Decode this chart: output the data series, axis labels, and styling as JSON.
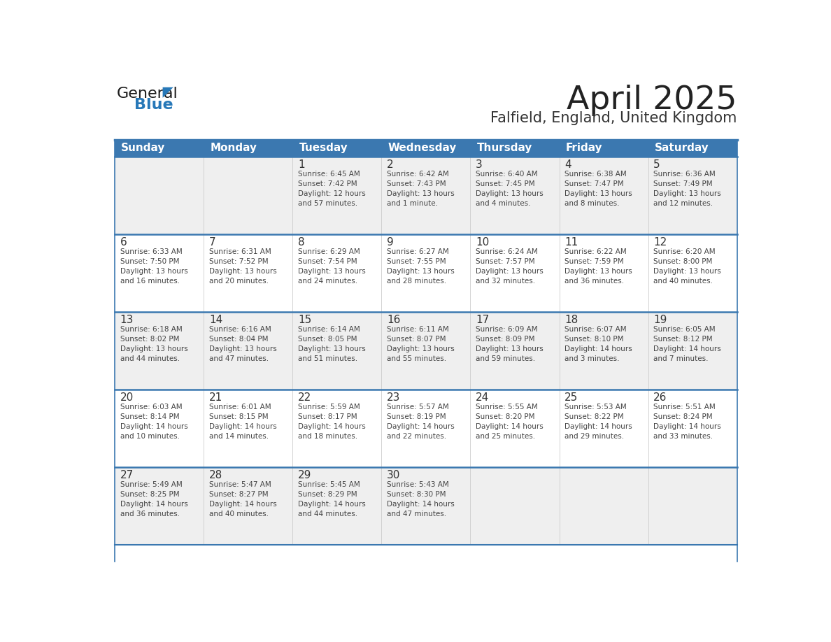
{
  "title": "April 2025",
  "subtitle": "Falfield, England, United Kingdom",
  "days_of_week": [
    "Sunday",
    "Monday",
    "Tuesday",
    "Wednesday",
    "Thursday",
    "Friday",
    "Saturday"
  ],
  "header_bg_color": "#3b78b0",
  "header_text_color": "#ffffff",
  "row_bg_light": "#efefef",
  "row_bg_white": "#ffffff",
  "cell_border_color": "#3b78b0",
  "row_separator_color": "#3b78b0",
  "title_color": "#222222",
  "subtitle_color": "#333333",
  "day_number_color": "#333333",
  "cell_text_color": "#444444",
  "logo_general_color": "#1a1a1a",
  "logo_blue_color": "#2778b8",
  "weeks": [
    [
      {
        "day": null,
        "text": ""
      },
      {
        "day": null,
        "text": ""
      },
      {
        "day": 1,
        "text": "Sunrise: 6:45 AM\nSunset: 7:42 PM\nDaylight: 12 hours\nand 57 minutes."
      },
      {
        "day": 2,
        "text": "Sunrise: 6:42 AM\nSunset: 7:43 PM\nDaylight: 13 hours\nand 1 minute."
      },
      {
        "day": 3,
        "text": "Sunrise: 6:40 AM\nSunset: 7:45 PM\nDaylight: 13 hours\nand 4 minutes."
      },
      {
        "day": 4,
        "text": "Sunrise: 6:38 AM\nSunset: 7:47 PM\nDaylight: 13 hours\nand 8 minutes."
      },
      {
        "day": 5,
        "text": "Sunrise: 6:36 AM\nSunset: 7:49 PM\nDaylight: 13 hours\nand 12 minutes."
      }
    ],
    [
      {
        "day": 6,
        "text": "Sunrise: 6:33 AM\nSunset: 7:50 PM\nDaylight: 13 hours\nand 16 minutes."
      },
      {
        "day": 7,
        "text": "Sunrise: 6:31 AM\nSunset: 7:52 PM\nDaylight: 13 hours\nand 20 minutes."
      },
      {
        "day": 8,
        "text": "Sunrise: 6:29 AM\nSunset: 7:54 PM\nDaylight: 13 hours\nand 24 minutes."
      },
      {
        "day": 9,
        "text": "Sunrise: 6:27 AM\nSunset: 7:55 PM\nDaylight: 13 hours\nand 28 minutes."
      },
      {
        "day": 10,
        "text": "Sunrise: 6:24 AM\nSunset: 7:57 PM\nDaylight: 13 hours\nand 32 minutes."
      },
      {
        "day": 11,
        "text": "Sunrise: 6:22 AM\nSunset: 7:59 PM\nDaylight: 13 hours\nand 36 minutes."
      },
      {
        "day": 12,
        "text": "Sunrise: 6:20 AM\nSunset: 8:00 PM\nDaylight: 13 hours\nand 40 minutes."
      }
    ],
    [
      {
        "day": 13,
        "text": "Sunrise: 6:18 AM\nSunset: 8:02 PM\nDaylight: 13 hours\nand 44 minutes."
      },
      {
        "day": 14,
        "text": "Sunrise: 6:16 AM\nSunset: 8:04 PM\nDaylight: 13 hours\nand 47 minutes."
      },
      {
        "day": 15,
        "text": "Sunrise: 6:14 AM\nSunset: 8:05 PM\nDaylight: 13 hours\nand 51 minutes."
      },
      {
        "day": 16,
        "text": "Sunrise: 6:11 AM\nSunset: 8:07 PM\nDaylight: 13 hours\nand 55 minutes."
      },
      {
        "day": 17,
        "text": "Sunrise: 6:09 AM\nSunset: 8:09 PM\nDaylight: 13 hours\nand 59 minutes."
      },
      {
        "day": 18,
        "text": "Sunrise: 6:07 AM\nSunset: 8:10 PM\nDaylight: 14 hours\nand 3 minutes."
      },
      {
        "day": 19,
        "text": "Sunrise: 6:05 AM\nSunset: 8:12 PM\nDaylight: 14 hours\nand 7 minutes."
      }
    ],
    [
      {
        "day": 20,
        "text": "Sunrise: 6:03 AM\nSunset: 8:14 PM\nDaylight: 14 hours\nand 10 minutes."
      },
      {
        "day": 21,
        "text": "Sunrise: 6:01 AM\nSunset: 8:15 PM\nDaylight: 14 hours\nand 14 minutes."
      },
      {
        "day": 22,
        "text": "Sunrise: 5:59 AM\nSunset: 8:17 PM\nDaylight: 14 hours\nand 18 minutes."
      },
      {
        "day": 23,
        "text": "Sunrise: 5:57 AM\nSunset: 8:19 PM\nDaylight: 14 hours\nand 22 minutes."
      },
      {
        "day": 24,
        "text": "Sunrise: 5:55 AM\nSunset: 8:20 PM\nDaylight: 14 hours\nand 25 minutes."
      },
      {
        "day": 25,
        "text": "Sunrise: 5:53 AM\nSunset: 8:22 PM\nDaylight: 14 hours\nand 29 minutes."
      },
      {
        "day": 26,
        "text": "Sunrise: 5:51 AM\nSunset: 8:24 PM\nDaylight: 14 hours\nand 33 minutes."
      }
    ],
    [
      {
        "day": 27,
        "text": "Sunrise: 5:49 AM\nSunset: 8:25 PM\nDaylight: 14 hours\nand 36 minutes."
      },
      {
        "day": 28,
        "text": "Sunrise: 5:47 AM\nSunset: 8:27 PM\nDaylight: 14 hours\nand 40 minutes."
      },
      {
        "day": 29,
        "text": "Sunrise: 5:45 AM\nSunset: 8:29 PM\nDaylight: 14 hours\nand 44 minutes."
      },
      {
        "day": 30,
        "text": "Sunrise: 5:43 AM\nSunset: 8:30 PM\nDaylight: 14 hours\nand 47 minutes."
      },
      {
        "day": null,
        "text": ""
      },
      {
        "day": null,
        "text": ""
      },
      {
        "day": null,
        "text": ""
      }
    ]
  ]
}
